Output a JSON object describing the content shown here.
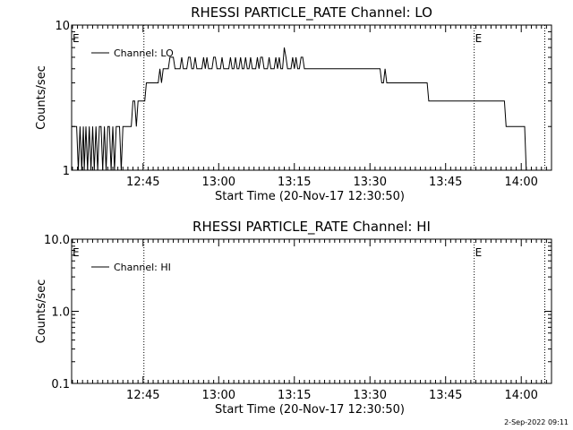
{
  "chart_data": [
    {
      "type": "line",
      "title": "RHESSI PARTICLE_RATE Channel: LO",
      "xlabel": "Start Time (20-Nov-17 12:30:50)",
      "ylabel": "Counts/sec",
      "y_scale": "log",
      "ylim": [
        1,
        10
      ],
      "y_ticks": [
        1,
        10
      ],
      "y_tick_labels": [
        "1",
        "10"
      ],
      "xlim": [
        "12:30:50",
        "14:06:00"
      ],
      "x_ticks": [
        "12:45",
        "13:00",
        "13:15",
        "13:30",
        "13:45",
        "14:00"
      ],
      "x_tick_labels": [
        "12:45",
        "13:00",
        "13:15",
        "13:30",
        "13:45",
        "14:00"
      ],
      "vertical_markers": [
        "12:45:10",
        "13:50:40",
        "14:04:40"
      ],
      "annotations": [
        {
          "text": "E",
          "x": "12:30:50"
        },
        {
          "text": "E",
          "x": "13:50:40"
        }
      ],
      "legend": {
        "position": "top-left",
        "entries": [
          "Channel: LO"
        ]
      },
      "grid": false,
      "series": [
        {
          "name": "Channel: LO",
          "x_seconds_after_start": [
            0,
            30,
            40,
            60,
            80,
            100,
            120,
            140,
            150,
            170,
            190,
            210,
            230,
            250,
            270,
            290,
            310,
            330,
            350,
            370,
            390,
            410,
            430,
            450,
            470,
            490,
            510,
            530,
            550,
            570,
            590,
            610,
            630,
            650,
            670,
            690,
            710,
            730,
            750,
            770,
            790,
            810,
            830,
            850,
            870,
            890,
            910,
            930,
            950,
            970,
            990,
            1010,
            1030,
            1050,
            1070,
            1090,
            1110,
            1130,
            1150,
            1170,
            1190,
            1210,
            1230,
            1250,
            1270,
            1290,
            1310,
            1330,
            1350,
            1370,
            1390,
            1410,
            1430,
            1450,
            1470,
            1490,
            1510,
            1530,
            1550,
            1570,
            1590,
            1610,
            1630,
            1650,
            1670,
            1690,
            1710,
            1730,
            1750,
            1770,
            1790,
            1810,
            1830,
            1850,
            1870,
            1890,
            1910,
            1930,
            1950,
            1970,
            1990,
            2010,
            2030,
            2050,
            2070,
            2090,
            2110,
            2130,
            2150,
            2170,
            2190,
            2210,
            2230,
            2250,
            2270,
            2290,
            2310,
            2330,
            2350,
            2370,
            2390,
            2410,
            2430,
            2450,
            2470,
            2490,
            2510,
            2530,
            2550,
            2570,
            2590,
            2610,
            2630,
            2650,
            2670,
            2690,
            2710,
            2730,
            2750,
            2770,
            2790,
            2810,
            2830,
            2850,
            2870,
            2890,
            2910,
            2930,
            2950,
            2970,
            2990,
            3010,
            3030,
            3050,
            3070,
            3090,
            3110,
            3130,
            3150,
            3170,
            3190,
            3210,
            3230,
            3250,
            3270,
            3290,
            3310,
            3330,
            3350,
            3370,
            3390,
            3410,
            3430,
            3450,
            3470,
            3490,
            3510,
            3530,
            3550,
            3570,
            3590,
            3610,
            3630,
            3650,
            3670,
            3690,
            3710,
            3730,
            3750,
            3770,
            3790,
            3810,
            3830,
            3850,
            3870,
            3890,
            3910,
            3930,
            3950,
            3970,
            3990,
            4010,
            4030,
            4050,
            4070,
            4090,
            4110,
            4130,
            4150,
            4170,
            4190,
            4210,
            4230,
            4250,
            4270,
            4290,
            4310,
            4330,
            4350,
            4370,
            4390,
            4410,
            4430,
            4450,
            4470,
            4490,
            4510,
            4530,
            4550,
            4570,
            4590,
            4610,
            4630,
            4650,
            4670,
            4690,
            4710,
            4730,
            4750,
            4770,
            4790,
            4810,
            4830,
            4850,
            4870,
            4890,
            4910,
            4930,
            4950,
            4970,
            4990,
            5010,
            5030,
            5050,
            5070,
            5090,
            5110,
            5130,
            5150,
            5170,
            5190,
            5210,
            5230,
            5250,
            5270,
            5290,
            5310,
            5330,
            5350,
            5370,
            5390,
            5410,
            5430,
            5450,
            5470,
            5490,
            5510,
            5530,
            5550
          ],
          "values": [
            2,
            2,
            2,
            2,
            1,
            2,
            1,
            2,
            1,
            2,
            1,
            2,
            1,
            2,
            1,
            2,
            1,
            2,
            2,
            1,
            2,
            1,
            2,
            2,
            1,
            2,
            1,
            2,
            2,
            2,
            1,
            2,
            2,
            2,
            2,
            2,
            2,
            3,
            3,
            2,
            3,
            3,
            3,
            3,
            3,
            4,
            4,
            4,
            4,
            4,
            4,
            4,
            4,
            5,
            4,
            5,
            5,
            5,
            5,
            6,
            6,
            6,
            5,
            5,
            5,
            5,
            6,
            5,
            5,
            5,
            6,
            6,
            5,
            5,
            6,
            5,
            5,
            5,
            5,
            6,
            5,
            6,
            5,
            5,
            5,
            6,
            6,
            5,
            5,
            5,
            6,
            5,
            5,
            5,
            5,
            6,
            5,
            5,
            6,
            5,
            5,
            6,
            5,
            5,
            6,
            5,
            5,
            6,
            5,
            5,
            5,
            6,
            5,
            6,
            6,
            5,
            5,
            5,
            6,
            5,
            5,
            5,
            6,
            5,
            6,
            5,
            5,
            7,
            6,
            5,
            5,
            5,
            6,
            5,
            6,
            5,
            5,
            6,
            6,
            5,
            5,
            5,
            5,
            5,
            5,
            5,
            5,
            5,
            5,
            5,
            5,
            5,
            5,
            5,
            5,
            5,
            5,
            5,
            5,
            5,
            5,
            5,
            5,
            5,
            5,
            5,
            5,
            5,
            5,
            5,
            5,
            5,
            5,
            5,
            5,
            5,
            5,
            5,
            5,
            5,
            5,
            5,
            5,
            5,
            5,
            4,
            4,
            5,
            4,
            4,
            4,
            4,
            4,
            4,
            4,
            4,
            4,
            4,
            4,
            4,
            4,
            4,
            4,
            4,
            4,
            4,
            4,
            4,
            4,
            4,
            4,
            4,
            4,
            3,
            3,
            3,
            3,
            3,
            3,
            3,
            3,
            3,
            3,
            3,
            3,
            3,
            3,
            3,
            3,
            3,
            3,
            3,
            3,
            3,
            3,
            3,
            3,
            3,
            3,
            3,
            3,
            3,
            3,
            3,
            3,
            3,
            3,
            3,
            3,
            3,
            3,
            3,
            3,
            3,
            3,
            3,
            3,
            3,
            3,
            2,
            2,
            2,
            2,
            2,
            2,
            2,
            2,
            2,
            2,
            2,
            2,
            1
          ]
        }
      ]
    },
    {
      "type": "line",
      "title": "RHESSI PARTICLE_RATE Channel: HI",
      "xlabel": "Start Time (20-Nov-17 12:30:50)",
      "ylabel": "Counts/sec",
      "y_scale": "log",
      "ylim": [
        0.1,
        10.0
      ],
      "y_ticks": [
        0.1,
        1.0,
        10.0
      ],
      "y_tick_labels": [
        "0.1",
        "1.0",
        "10.0"
      ],
      "xlim": [
        "12:30:50",
        "14:06:00"
      ],
      "x_ticks": [
        "12:45",
        "13:00",
        "13:15",
        "13:30",
        "13:45",
        "14:00"
      ],
      "x_tick_labels": [
        "12:45",
        "13:00",
        "13:15",
        "13:30",
        "13:45",
        "14:00"
      ],
      "vertical_markers": [
        "12:45:10",
        "13:50:40",
        "14:04:40"
      ],
      "annotations": [
        {
          "text": "E",
          "x": "12:30:50"
        },
        {
          "text": "E",
          "x": "13:50:40"
        }
      ],
      "legend": {
        "position": "top-left",
        "entries": [
          "Channel: HI"
        ]
      },
      "grid": false,
      "series": [
        {
          "name": "Channel: HI",
          "x_seconds_after_start": [],
          "values": []
        }
      ]
    }
  ],
  "timestamp": "2-Sep-2022 09:11"
}
